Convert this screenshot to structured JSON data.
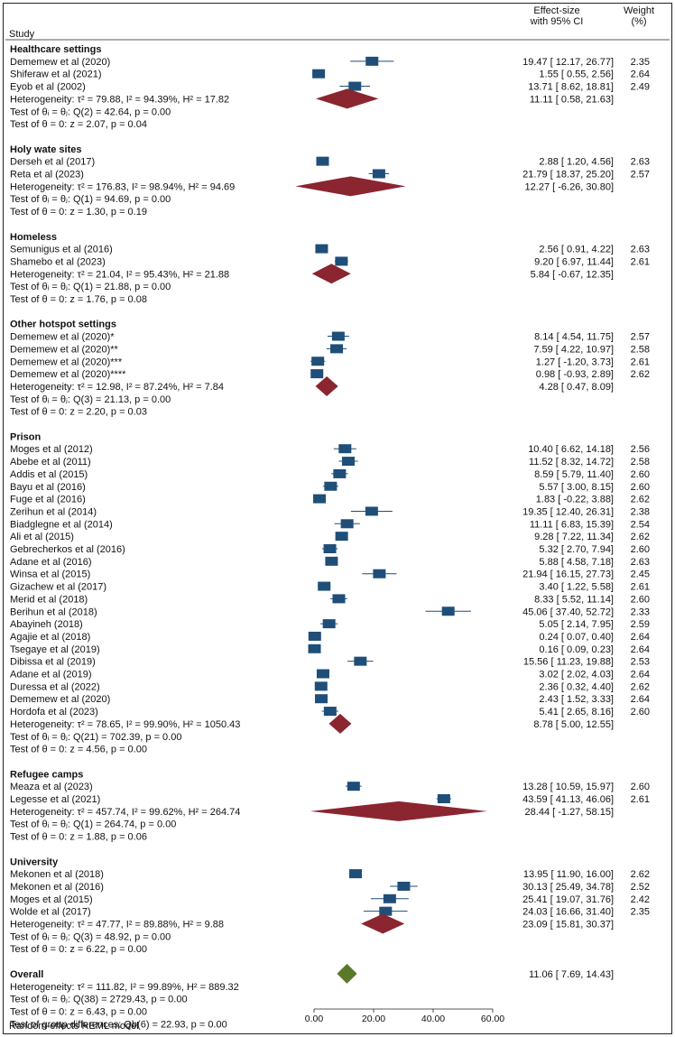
{
  "header": {
    "study": "Study",
    "es_line1": "Effect-size",
    "es_line2": "with 95% CI",
    "wt_line1": "Weight",
    "wt_line2": "(%)"
  },
  "footer": {
    "model_note": "Random-effects REML model"
  },
  "colors": {
    "study_marker": "#1f4e79",
    "group_diamond": "#8b2530",
    "overall_diamond": "#5a7a2a",
    "border": "#222222"
  },
  "chart_data": {
    "type": "forest",
    "xlim": [
      0,
      60
    ],
    "x_ticks": [
      "0.00",
      "20.00",
      "40.00",
      "60.00"
    ],
    "x_tick_values": [
      0,
      20,
      40,
      60
    ],
    "groups": [
      {
        "name": "Healthcare settings",
        "studies": [
          {
            "label": "Dememew et al (2020)",
            "es": 19.47,
            "lo": 12.17,
            "hi": 26.77,
            "ci": "19.47 [ 12.17, 26.77]",
            "weight": "2.35"
          },
          {
            "label": "Shiferaw et al (2021)",
            "es": 1.55,
            "lo": 0.55,
            "hi": 2.56,
            "ci": "1.55 [ 0.55, 2.56]",
            "weight": "2.64"
          },
          {
            "label": "Eyob et al (2002)",
            "es": 13.71,
            "lo": 8.62,
            "hi": 18.81,
            "ci": "13.71 [ 8.62, 18.81]",
            "weight": "2.49"
          }
        ],
        "heterogeneity": "Heterogeneity: τ² = 79.88, I² = 94.39%, H² = 17.82",
        "pooled": {
          "es": 11.11,
          "lo": 0.58,
          "hi": 21.63,
          "ci": "11.11 [ 0.58, 21.63]"
        },
        "q_test": "Test of θᵢ = θⱼ: Q(2) = 42.64, p = 0.00",
        "z_test": "Test of θ = 0: z = 2.07, p = 0.04"
      },
      {
        "name": "Holy wate sites",
        "studies": [
          {
            "label": "Derseh et al (2017)",
            "es": 2.88,
            "lo": 1.2,
            "hi": 4.56,
            "ci": "2.88 [ 1.20, 4.56]",
            "weight": "2.63"
          },
          {
            "label": "Reta et al (2023)",
            "es": 21.79,
            "lo": 18.37,
            "hi": 25.2,
            "ci": "21.79 [ 18.37, 25.20]",
            "weight": "2.57"
          }
        ],
        "heterogeneity": "Heterogeneity: τ² = 176.83, I² = 98.94%, H² = 94.69",
        "pooled": {
          "es": 12.27,
          "lo": -6.26,
          "hi": 30.8,
          "ci": "12.27 [ -6.26, 30.80]"
        },
        "q_test": "Test of θᵢ = θⱼ: Q(1) = 94.69, p = 0.00",
        "z_test": "Test of θ = 0: z = 1.30, p = 0.19"
      },
      {
        "name": "Homeless",
        "studies": [
          {
            "label": "Semunigus et al (2016)",
            "es": 2.56,
            "lo": 0.91,
            "hi": 4.22,
            "ci": "2.56 [ 0.91, 4.22]",
            "weight": "2.63"
          },
          {
            "label": "Shamebo et al (2023)",
            "es": 9.2,
            "lo": 6.97,
            "hi": 11.44,
            "ci": "9.20 [ 6.97, 11.44]",
            "weight": "2.61"
          }
        ],
        "heterogeneity": "Heterogeneity: τ² = 21.04, I² = 95.43%, H² = 21.88",
        "pooled": {
          "es": 5.84,
          "lo": -0.67,
          "hi": 12.35,
          "ci": "5.84 [ -0.67, 12.35]"
        },
        "q_test": "Test of θᵢ = θⱼ: Q(1) = 21.88, p = 0.00",
        "z_test": "Test of θ = 0: z = 1.76, p = 0.08"
      },
      {
        "name": "Other hotspot settings",
        "studies": [
          {
            "label": "Dememew et al (2020)*",
            "es": 8.14,
            "lo": 4.54,
            "hi": 11.75,
            "ci": "8.14 [ 4.54, 11.75]",
            "weight": "2.57"
          },
          {
            "label": "Dememew et al (2020)**",
            "es": 7.59,
            "lo": 4.22,
            "hi": 10.97,
            "ci": "7.59 [ 4.22, 10.97]",
            "weight": "2.58"
          },
          {
            "label": "Dememew et al (2020)***",
            "es": 1.27,
            "lo": -1.2,
            "hi": 3.73,
            "ci": "1.27 [ -1.20, 3.73]",
            "weight": "2.61"
          },
          {
            "label": "Dememew et al (2020)****",
            "es": 0.98,
            "lo": -0.93,
            "hi": 2.89,
            "ci": "0.98 [ -0.93, 2.89]",
            "weight": "2.62"
          }
        ],
        "heterogeneity": "Heterogeneity: τ² = 12.98, I² = 87.24%, H² = 7.84",
        "pooled": {
          "es": 4.28,
          "lo": 0.47,
          "hi": 8.09,
          "ci": "4.28 [ 0.47, 8.09]"
        },
        "q_test": "Test of θᵢ = θⱼ: Q(3) = 21.13, p = 0.00",
        "z_test": "Test of θ = 0: z = 2.20, p = 0.03"
      },
      {
        "name": "Prison",
        "studies": [
          {
            "label": "Moges et al (2012)",
            "es": 10.4,
            "lo": 6.62,
            "hi": 14.18,
            "ci": "10.40 [ 6.62, 14.18]",
            "weight": "2.56"
          },
          {
            "label": "Abebe et al (2011)",
            "es": 11.52,
            "lo": 8.32,
            "hi": 14.72,
            "ci": "11.52 [ 8.32, 14.72]",
            "weight": "2.58"
          },
          {
            "label": "Addis et al (2015)",
            "es": 8.59,
            "lo": 5.79,
            "hi": 11.4,
            "ci": "8.59 [ 5.79, 11.40]",
            "weight": "2.60"
          },
          {
            "label": "Bayu et al (2016)",
            "es": 5.57,
            "lo": 3.0,
            "hi": 8.15,
            "ci": "5.57 [ 3.00, 8.15]",
            "weight": "2.60"
          },
          {
            "label": "Fuge et al (2016)",
            "es": 1.83,
            "lo": -0.22,
            "hi": 3.88,
            "ci": "1.83 [ -0.22, 3.88]",
            "weight": "2.62"
          },
          {
            "label": "Zerihun et al (2014)",
            "es": 19.35,
            "lo": 12.4,
            "hi": 26.31,
            "ci": "19.35 [ 12.40, 26.31]",
            "weight": "2.38"
          },
          {
            "label": "Biadglegne et al (2014)",
            "es": 11.11,
            "lo": 6.83,
            "hi": 15.39,
            "ci": "11.11 [ 6.83, 15.39]",
            "weight": "2.54"
          },
          {
            "label": "Ali et al (2015)",
            "es": 9.28,
            "lo": 7.22,
            "hi": 11.34,
            "ci": "9.28 [ 7.22, 11.34]",
            "weight": "2.62"
          },
          {
            "label": "Gebrecherkos et al (2016)",
            "es": 5.32,
            "lo": 2.7,
            "hi": 7.94,
            "ci": "5.32 [ 2.70, 7.94]",
            "weight": "2.60"
          },
          {
            "label": "Adane et al (2016)",
            "es": 5.88,
            "lo": 4.58,
            "hi": 7.18,
            "ci": "5.88 [ 4.58, 7.18]",
            "weight": "2.63"
          },
          {
            "label": "Winsa et al (2015)",
            "es": 21.94,
            "lo": 16.15,
            "hi": 27.73,
            "ci": "21.94 [ 16.15, 27.73]",
            "weight": "2.45"
          },
          {
            "label": "Gizachew et al (2017)",
            "es": 3.4,
            "lo": 1.22,
            "hi": 5.58,
            "ci": "3.40 [ 1.22, 5.58]",
            "weight": "2.61"
          },
          {
            "label": "Merid et al (2018)",
            "es": 8.33,
            "lo": 5.52,
            "hi": 11.14,
            "ci": "8.33 [ 5.52, 11.14]",
            "weight": "2.60"
          },
          {
            "label": "Berihun et al (2018)",
            "es": 45.06,
            "lo": 37.4,
            "hi": 52.72,
            "ci": "45.06 [ 37.40, 52.72]",
            "weight": "2.33"
          },
          {
            "label": "Abayineh (2018)",
            "es": 5.05,
            "lo": 2.14,
            "hi": 7.95,
            "ci": "5.05 [ 2.14, 7.95]",
            "weight": "2.59"
          },
          {
            "label": "Agajie et al (2018)",
            "es": 0.24,
            "lo": 0.07,
            "hi": 0.4,
            "ci": "0.24 [ 0.07, 0.40]",
            "weight": "2.64"
          },
          {
            "label": "Tsegaye et al (2019)",
            "es": 0.16,
            "lo": 0.09,
            "hi": 0.23,
            "ci": "0.16 [ 0.09, 0.23]",
            "weight": "2.64"
          },
          {
            "label": "Dibissa et al (2019)",
            "es": 15.56,
            "lo": 11.23,
            "hi": 19.88,
            "ci": "15.56 [ 11.23, 19.88]",
            "weight": "2.53"
          },
          {
            "label": "Adane et al (2019)",
            "es": 3.02,
            "lo": 2.02,
            "hi": 4.03,
            "ci": "3.02 [ 2.02, 4.03]",
            "weight": "2.64"
          },
          {
            "label": "Duressa et al (2022)",
            "es": 2.36,
            "lo": 0.32,
            "hi": 4.4,
            "ci": "2.36 [ 0.32, 4.40]",
            "weight": "2.62"
          },
          {
            "label": "Dememew et al (2020)",
            "es": 2.43,
            "lo": 1.52,
            "hi": 3.33,
            "ci": "2.43 [ 1.52, 3.33]",
            "weight": "2.64"
          },
          {
            "label": "Hordofa et al (2023)",
            "es": 5.41,
            "lo": 2.65,
            "hi": 8.16,
            "ci": "5.41 [ 2.65, 8.16]",
            "weight": "2.60"
          }
        ],
        "heterogeneity": "Heterogeneity: τ² = 78.65, I² = 99.90%, H² = 1050.43",
        "pooled": {
          "es": 8.78,
          "lo": 5.0,
          "hi": 12.55,
          "ci": "8.78 [ 5.00, 12.55]"
        },
        "q_test": "Test of θᵢ = θⱼ: Q(21) = 702.39, p = 0.00",
        "z_test": "Test of θ = 0: z = 4.56, p = 0.00"
      },
      {
        "name": "Refugee camps",
        "studies": [
          {
            "label": "Meaza et al (2023)",
            "es": 13.28,
            "lo": 10.59,
            "hi": 15.97,
            "ci": "13.28 [ 10.59, 15.97]",
            "weight": "2.60"
          },
          {
            "label": "Legesse et al (2021)",
            "es": 43.59,
            "lo": 41.13,
            "hi": 46.06,
            "ci": "43.59 [ 41.13, 46.06]",
            "weight": "2.61"
          }
        ],
        "heterogeneity": "Heterogeneity: τ² = 457.74, I² = 99.62%, H² = 264.74",
        "pooled": {
          "es": 28.44,
          "lo": -1.27,
          "hi": 58.15,
          "ci": "28.44 [ -1.27, 58.15]"
        },
        "q_test": "Test of θᵢ = θⱼ: Q(1) = 264.74, p = 0.00",
        "z_test": "Test of θ = 0: z = 1.88, p = 0.06"
      },
      {
        "name": "University",
        "studies": [
          {
            "label": "Mekonen et al (2018)",
            "es": 13.95,
            "lo": 11.9,
            "hi": 16.0,
            "ci": "13.95 [ 11.90, 16.00]",
            "weight": "2.62"
          },
          {
            "label": "Mekonen et al (2016)",
            "es": 30.13,
            "lo": 25.49,
            "hi": 34.78,
            "ci": "30.13 [ 25.49, 34.78]",
            "weight": "2.52"
          },
          {
            "label": "Moges et al (2015)",
            "es": 25.41,
            "lo": 19.07,
            "hi": 31.76,
            "ci": "25.41 [ 19.07, 31.76]",
            "weight": "2.42"
          },
          {
            "label": "Wolde et al (2017)",
            "es": 24.03,
            "lo": 16.66,
            "hi": 31.4,
            "ci": "24.03 [ 16.66, 31.40]",
            "weight": "2.35"
          }
        ],
        "heterogeneity": "Heterogeneity: τ² = 47.77, I² = 89.88%, H² = 9.88",
        "pooled": {
          "es": 23.09,
          "lo": 15.81,
          "hi": 30.37,
          "ci": "23.09 [ 15.81, 30.37]"
        },
        "q_test": "Test of θᵢ = θⱼ: Q(3) = 48.92, p = 0.00",
        "z_test": "Test of θ = 0: z = 6.22, p = 0.00"
      }
    ],
    "overall": {
      "name": "Overall",
      "pooled": {
        "es": 11.06,
        "lo": 7.69,
        "hi": 14.43,
        "ci": "11.06 [ 7.69, 14.43]"
      },
      "heterogeneity": "Heterogeneity: τ² = 111.82, I² = 99.89%, H² = 889.32",
      "q_test": "Test of θᵢ = θⱼ: Q(38) = 2729.43, p = 0.00",
      "z_test": "Test of θ = 0: z = 6.43, p = 0.00",
      "group_test": "Test of group differences: Qb(6) = 22.93, p = 0.00"
    }
  }
}
